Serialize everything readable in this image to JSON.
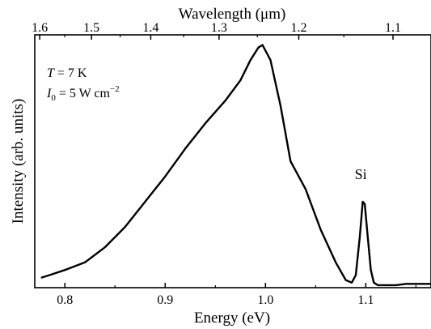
{
  "chart_data": {
    "type": "line",
    "xlabel": "Energy (eV)",
    "ylabel": "Intensity (arb. units)",
    "top_xlabel": "Wavelength (μm)",
    "xlim": [
      0.77,
      1.165
    ],
    "ylim": [
      0,
      1.0
    ],
    "x_ticks": [
      0.8,
      0.9,
      1.0,
      1.1
    ],
    "x_tick_labels": [
      "0.8",
      "0.9",
      "1.0",
      "1.1"
    ],
    "top_ticks_um": [
      1.6,
      1.5,
      1.4,
      1.3,
      1.2,
      1.1
    ],
    "top_tick_labels": [
      "1.6",
      "1.5",
      "1.4",
      "1.3",
      "1.2",
      "1.1"
    ],
    "annotations": {
      "temperature": {
        "symbol": "T",
        "text": " = 7 K"
      },
      "intensity": {
        "symbol": "I",
        "subscript": "0",
        "text": " = 5 W cm",
        "superscript": "−2"
      },
      "peak_label": "Si"
    },
    "peak_label_position": {
      "x": 1.095,
      "y": 0.43
    },
    "series": [
      {
        "x": [
          0.777,
          0.785,
          0.8,
          0.82,
          0.84,
          0.86,
          0.88,
          0.9,
          0.92,
          0.94,
          0.96,
          0.975,
          0.985,
          0.993,
          0.997,
          1.005,
          1.015,
          1.025,
          1.04,
          1.055,
          1.07,
          1.08,
          1.086,
          1.09,
          1.094,
          1.097,
          1.099,
          1.102,
          1.105,
          1.108,
          1.112,
          1.12,
          1.13,
          1.14,
          1.165
        ],
        "y": [
          0.04,
          0.05,
          0.07,
          0.1,
          0.16,
          0.24,
          0.34,
          0.44,
          0.55,
          0.65,
          0.74,
          0.82,
          0.9,
          0.95,
          0.96,
          0.9,
          0.72,
          0.5,
          0.39,
          0.23,
          0.1,
          0.03,
          0.02,
          0.05,
          0.2,
          0.34,
          0.33,
          0.2,
          0.07,
          0.02,
          0.01,
          0.01,
          0.01,
          0.015,
          0.015
        ]
      }
    ]
  }
}
